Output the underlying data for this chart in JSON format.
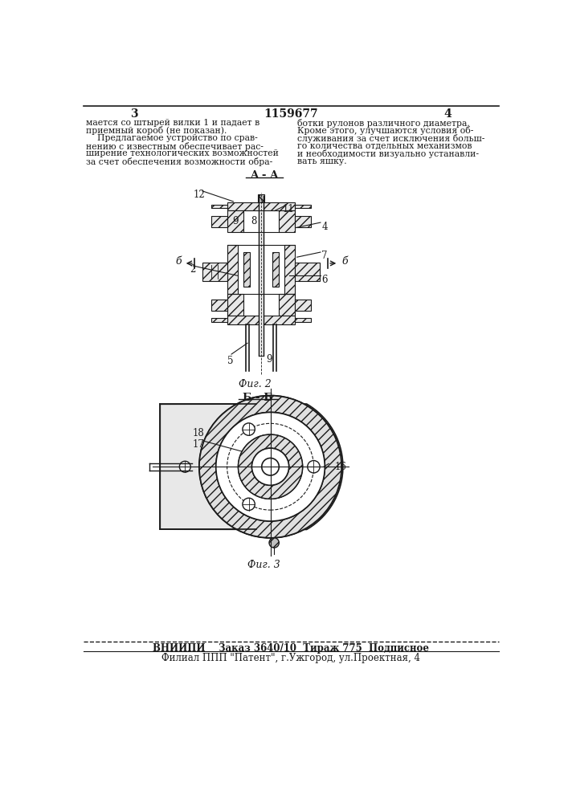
{
  "page_number_left": "3",
  "patent_number": "1159677",
  "page_number_right": "4",
  "text_left_lines": [
    "мается со штырей вилки 1 и падает в",
    "приемный короб (не показан).",
    "    Предлагаемое устройство по срав-",
    "нению с известным обеспечивает рас-",
    "ширение технологических возможностей",
    "за счет обеспечения возможности обра-"
  ],
  "text_right_lines": [
    "ботки рулонов различного диаметра.",
    "Кроме этого, улучшаются условия об-",
    "служивания за счет исключения больш-",
    "го количества отдельных механизмов",
    "и необходимости визуально устанавли-",
    "вать яшку."
  ],
  "fig2_label": "Фиг. 2",
  "fig2_section": "A - A",
  "fig3_label": "Фиг. 3",
  "fig3_section": "Б - Б",
  "footer_line1": "ВНИИПИ    Заказ 3640/10  Тираж 775  Подписное",
  "footer_line2": "Филиал ППП \"Патент\", г.Ужгород, ул.Проектная, 4",
  "bg_color": "#ffffff",
  "text_color": "#1a1a1a",
  "line_color": "#1a1a1a"
}
